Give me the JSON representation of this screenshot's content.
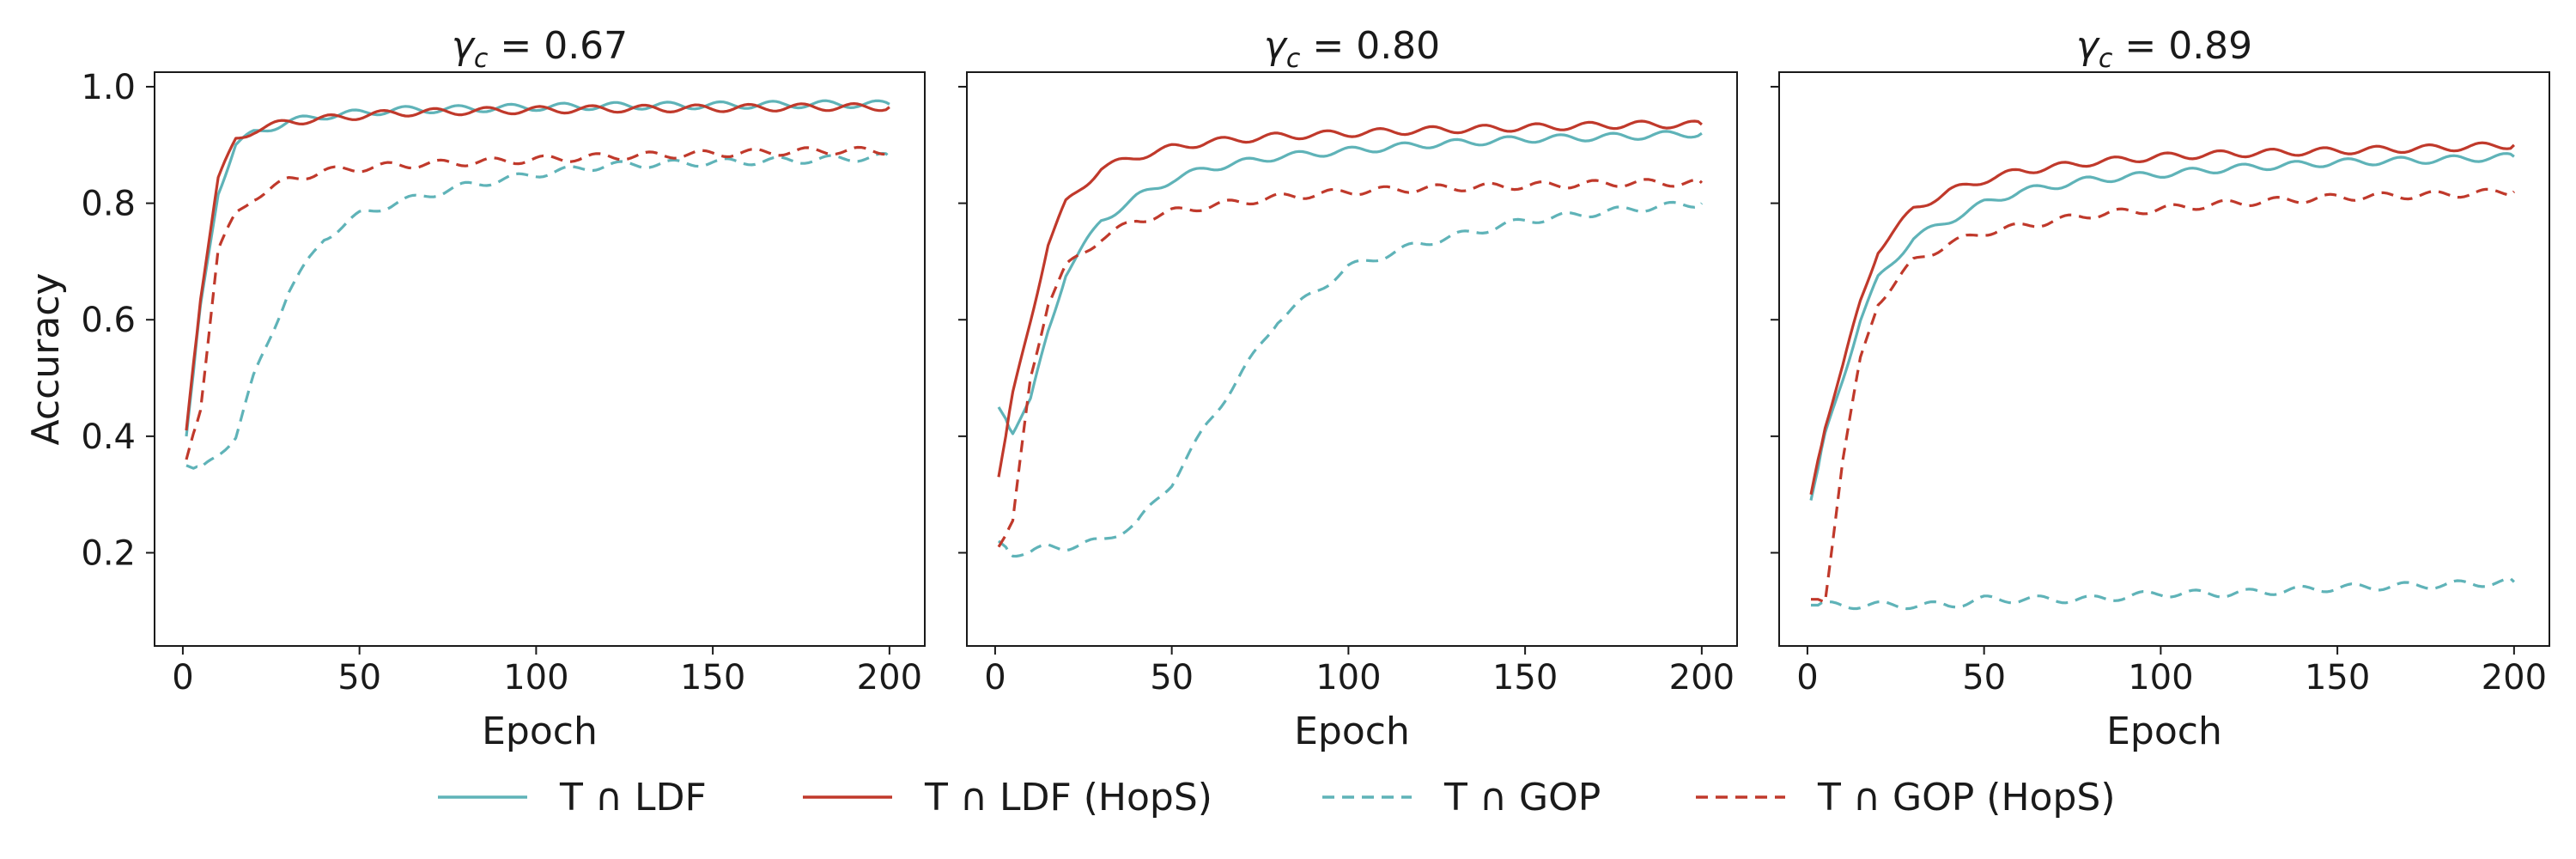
{
  "chart_data": [
    {
      "type": "line",
      "title": "γc = 0.67",
      "xlabel": "Epoch",
      "ylabel": "Accuracy",
      "xlim": [
        -8,
        210
      ],
      "ylim": [
        0.04,
        1.025
      ],
      "xticks": [
        0,
        50,
        100,
        150,
        200
      ],
      "yticks": [
        0.2,
        0.4,
        0.6,
        0.8,
        1.0
      ],
      "x": [
        1,
        5,
        10,
        15,
        20,
        30,
        40,
        50,
        60,
        80,
        100,
        120,
        150,
        180,
        200
      ],
      "series": [
        {
          "name": "T ∩ LDF",
          "values": [
            0.4,
            0.62,
            0.82,
            0.9,
            0.92,
            0.94,
            0.95,
            0.955,
            0.96,
            0.962,
            0.965,
            0.967,
            0.968,
            0.97,
            0.97
          ]
        },
        {
          "name": "T ∩ LDF (HopS)",
          "values": [
            0.41,
            0.64,
            0.84,
            0.91,
            0.925,
            0.94,
            0.945,
            0.95,
            0.955,
            0.958,
            0.96,
            0.962,
            0.963,
            0.965,
            0.965
          ]
        },
        {
          "name": "T ∩ GOP",
          "values": [
            0.35,
            0.34,
            0.37,
            0.4,
            0.5,
            0.65,
            0.74,
            0.78,
            0.8,
            0.83,
            0.85,
            0.865,
            0.87,
            0.875,
            0.88
          ]
        },
        {
          "name": "T ∩ GOP (HopS)",
          "values": [
            0.36,
            0.45,
            0.72,
            0.78,
            0.81,
            0.84,
            0.855,
            0.86,
            0.865,
            0.87,
            0.875,
            0.88,
            0.885,
            0.89,
            0.89
          ]
        }
      ]
    },
    {
      "type": "line",
      "title": "γc = 0.80",
      "xlabel": "Epoch",
      "ylabel": "",
      "xlim": [
        -8,
        210
      ],
      "ylim": [
        0.04,
        1.025
      ],
      "xticks": [
        0,
        50,
        100,
        150,
        200
      ],
      "yticks": [
        0.2,
        0.4,
        0.6,
        0.8,
        1.0
      ],
      "x": [
        1,
        5,
        10,
        15,
        20,
        30,
        40,
        50,
        60,
        80,
        100,
        120,
        150,
        180,
        200
      ],
      "series": [
        {
          "name": "T ∩ LDF",
          "values": [
            0.45,
            0.41,
            0.46,
            0.58,
            0.68,
            0.77,
            0.81,
            0.84,
            0.86,
            0.88,
            0.89,
            0.9,
            0.91,
            0.915,
            0.92
          ]
        },
        {
          "name": "T ∩ LDF (HopS)",
          "values": [
            0.33,
            0.47,
            0.6,
            0.73,
            0.8,
            0.86,
            0.88,
            0.895,
            0.905,
            0.915,
            0.92,
            0.925,
            0.93,
            0.935,
            0.935
          ]
        },
        {
          "name": "T ∩ GOP",
          "values": [
            0.22,
            0.2,
            0.2,
            0.21,
            0.21,
            0.22,
            0.25,
            0.32,
            0.42,
            0.6,
            0.69,
            0.73,
            0.77,
            0.79,
            0.8
          ]
        },
        {
          "name": "T ∩ GOP (HopS)",
          "values": [
            0.21,
            0.25,
            0.5,
            0.63,
            0.69,
            0.74,
            0.77,
            0.785,
            0.795,
            0.81,
            0.82,
            0.825,
            0.83,
            0.835,
            0.835
          ]
        }
      ]
    },
    {
      "type": "line",
      "title": "γc = 0.89",
      "xlabel": "Epoch",
      "ylabel": "",
      "xlim": [
        -8,
        210
      ],
      "ylim": [
        0.04,
        1.025
      ],
      "xticks": [
        0,
        50,
        100,
        150,
        200
      ],
      "yticks": [
        0.2,
        0.4,
        0.6,
        0.8,
        1.0
      ],
      "x": [
        1,
        5,
        10,
        15,
        20,
        30,
        40,
        50,
        60,
        80,
        100,
        120,
        150,
        180,
        200
      ],
      "series": [
        {
          "name": "T ∩ LDF",
          "values": [
            0.29,
            0.4,
            0.5,
            0.6,
            0.67,
            0.74,
            0.77,
            0.8,
            0.82,
            0.84,
            0.85,
            0.86,
            0.87,
            0.875,
            0.88
          ]
        },
        {
          "name": "T ∩ LDF (HopS)",
          "values": [
            0.3,
            0.42,
            0.52,
            0.63,
            0.72,
            0.79,
            0.82,
            0.84,
            0.855,
            0.87,
            0.88,
            0.885,
            0.89,
            0.895,
            0.9
          ]
        },
        {
          "name": "T ∩ GOP",
          "values": [
            0.11,
            0.11,
            0.11,
            0.11,
            0.11,
            0.11,
            0.11,
            0.12,
            0.12,
            0.12,
            0.13,
            0.13,
            0.14,
            0.145,
            0.15
          ]
        },
        {
          "name": "T ∩ GOP (HopS)",
          "values": [
            0.12,
            0.12,
            0.36,
            0.53,
            0.63,
            0.7,
            0.73,
            0.75,
            0.76,
            0.78,
            0.79,
            0.8,
            0.81,
            0.815,
            0.82
          ]
        }
      ]
    }
  ],
  "legend": {
    "placement": "bottom",
    "items": [
      {
        "label": "T ∩ LDF",
        "color": "#5fb3b8",
        "dash": "solid"
      },
      {
        "label": "T ∩ LDF (HopS)",
        "color": "#c0392b",
        "dash": "dashed-no"
      },
      {
        "label": "T ∩ GOP",
        "color": "#5fb3b8",
        "dash": "dashed"
      },
      {
        "label": "T ∩ GOP (HopS)",
        "color": "#c0392b",
        "dash": "dashed"
      }
    ]
  },
  "colors": {
    "teal": "#5fb3b8",
    "red": "#c0392b",
    "axis": "#1a1a1a"
  }
}
